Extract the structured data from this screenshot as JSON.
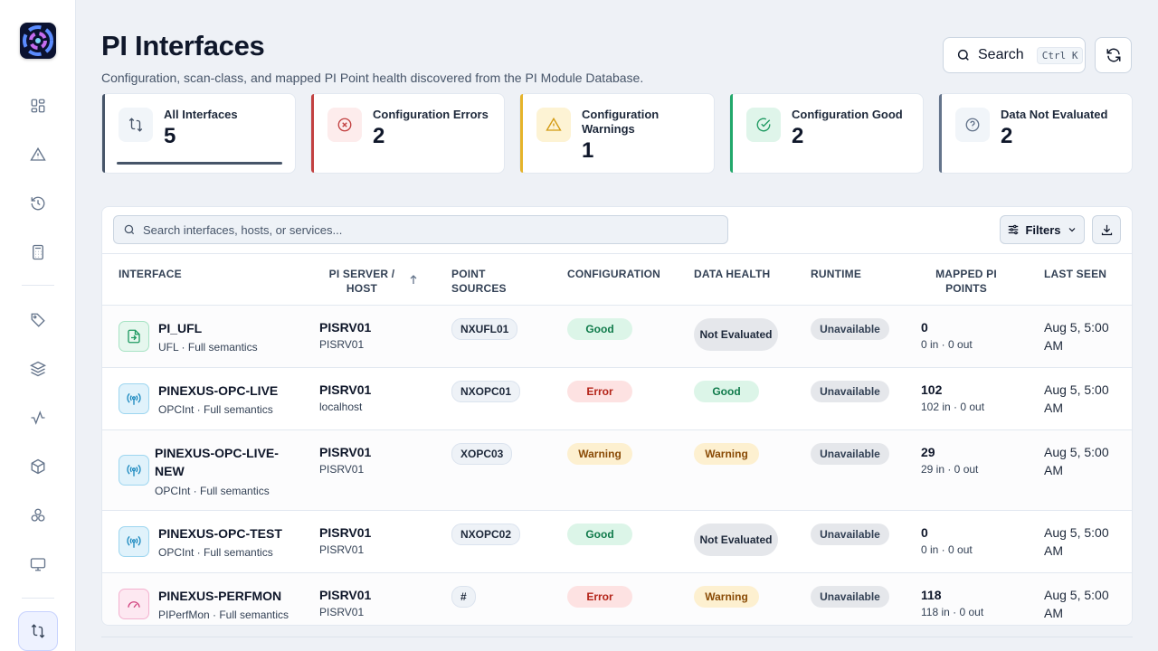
{
  "app": {
    "title": "PI Interfaces",
    "subtitle": "Configuration, scan-class, and mapped PI Point health discovered from the PI Module Database."
  },
  "header": {
    "search_label": "Search",
    "search_shortcut": "Ctrl K"
  },
  "sidebar": {
    "items": [
      {
        "icon": "dashboard-icon"
      },
      {
        "icon": "alert-triangle-icon"
      },
      {
        "icon": "history-icon"
      },
      {
        "icon": "calculator-icon"
      },
      {
        "icon": "tag-icon"
      },
      {
        "icon": "layers-icon"
      },
      {
        "icon": "activity-icon"
      },
      {
        "icon": "box-icon"
      },
      {
        "icon": "components-icon"
      },
      {
        "icon": "monitor-icon"
      },
      {
        "icon": "interfaces-icon",
        "active": true
      }
    ]
  },
  "stats": [
    {
      "label": "All Interfaces",
      "value": "5",
      "icon": "interfaces-icon",
      "accent": "#475569",
      "selected": true
    },
    {
      "label": "Configuration Errors",
      "value": "2",
      "icon": "x-circle-icon",
      "accent": "#c24141"
    },
    {
      "label": "Configuration Warnings",
      "value": "1",
      "icon": "warning-icon",
      "accent": "#e5b32a"
    },
    {
      "label": "Configuration Good",
      "value": "2",
      "icon": "check-circle-icon",
      "accent": "#22a86b"
    },
    {
      "label": "Data Not Evaluated",
      "value": "2",
      "icon": "help-circle-icon",
      "accent": "#64748b"
    }
  ],
  "table": {
    "search_placeholder": "Search interfaces, hosts, or services...",
    "filters_label": "Filters",
    "columns": {
      "interface": "INTERFACE",
      "server_1": "PI SERVER /",
      "server_2": "HOST",
      "sources_1": "POINT",
      "sources_2": "SOURCES",
      "configuration": "CONFIGURATION",
      "data_health": "DATA HEALTH",
      "runtime": "RUNTIME",
      "points_1": "MAPPED PI",
      "points_2": "POINTS",
      "last_seen": "LAST SEEN"
    },
    "rows": [
      {
        "name": "PI_UFL",
        "sub": "UFL · Full semantics",
        "icon": "file-import-icon",
        "server": "PISRV01",
        "host": "PISRV01",
        "source": "NXUFL01",
        "config": "Good",
        "health": "Not Evaluated",
        "runtime": "Unavailable",
        "points": "0",
        "points_sub": "0 in · 0 out",
        "last_seen": "Aug 5, 5:00 AM"
      },
      {
        "name": "PINEXUS-OPC-LIVE",
        "sub": "OPCInt · Full semantics",
        "icon": "broadcast-icon",
        "server": "PISRV01",
        "host": "localhost",
        "source": "NXOPC01",
        "config": "Error",
        "health": "Good",
        "runtime": "Unavailable",
        "points": "102",
        "points_sub": "102 in · 0 out",
        "last_seen": "Aug 5, 5:00 AM"
      },
      {
        "name": "PINEXUS-OPC-LIVE-NEW",
        "sub": "OPCInt · Full semantics",
        "icon": "broadcast-icon",
        "server": "PISRV01",
        "host": "PISRV01",
        "source": "XOPC03",
        "config": "Warning",
        "health": "Warning",
        "runtime": "Unavailable",
        "points": "29",
        "points_sub": "29 in · 0 out",
        "last_seen": "Aug 5, 5:00 AM"
      },
      {
        "name": "PINEXUS-OPC-TEST",
        "sub": "OPCInt · Full semantics",
        "icon": "broadcast-icon",
        "server": "PISRV01",
        "host": "PISRV01",
        "source": "NXOPC02",
        "config": "Good",
        "health": "Not Evaluated",
        "runtime": "Unavailable",
        "points": "0",
        "points_sub": "0 in · 0 out",
        "last_seen": "Aug 5, 5:00 AM"
      },
      {
        "name": "PINEXUS-PERFMON",
        "sub": "PIPerfMon · Full semantics",
        "icon": "gauge-icon",
        "server": "PISRV01",
        "host": "PISRV01",
        "source": "#",
        "config": "Error",
        "health": "Warning",
        "runtime": "Unavailable",
        "points": "118",
        "points_sub": "118 in · 0 out",
        "last_seen": "Aug 5, 5:00 AM"
      }
    ]
  }
}
